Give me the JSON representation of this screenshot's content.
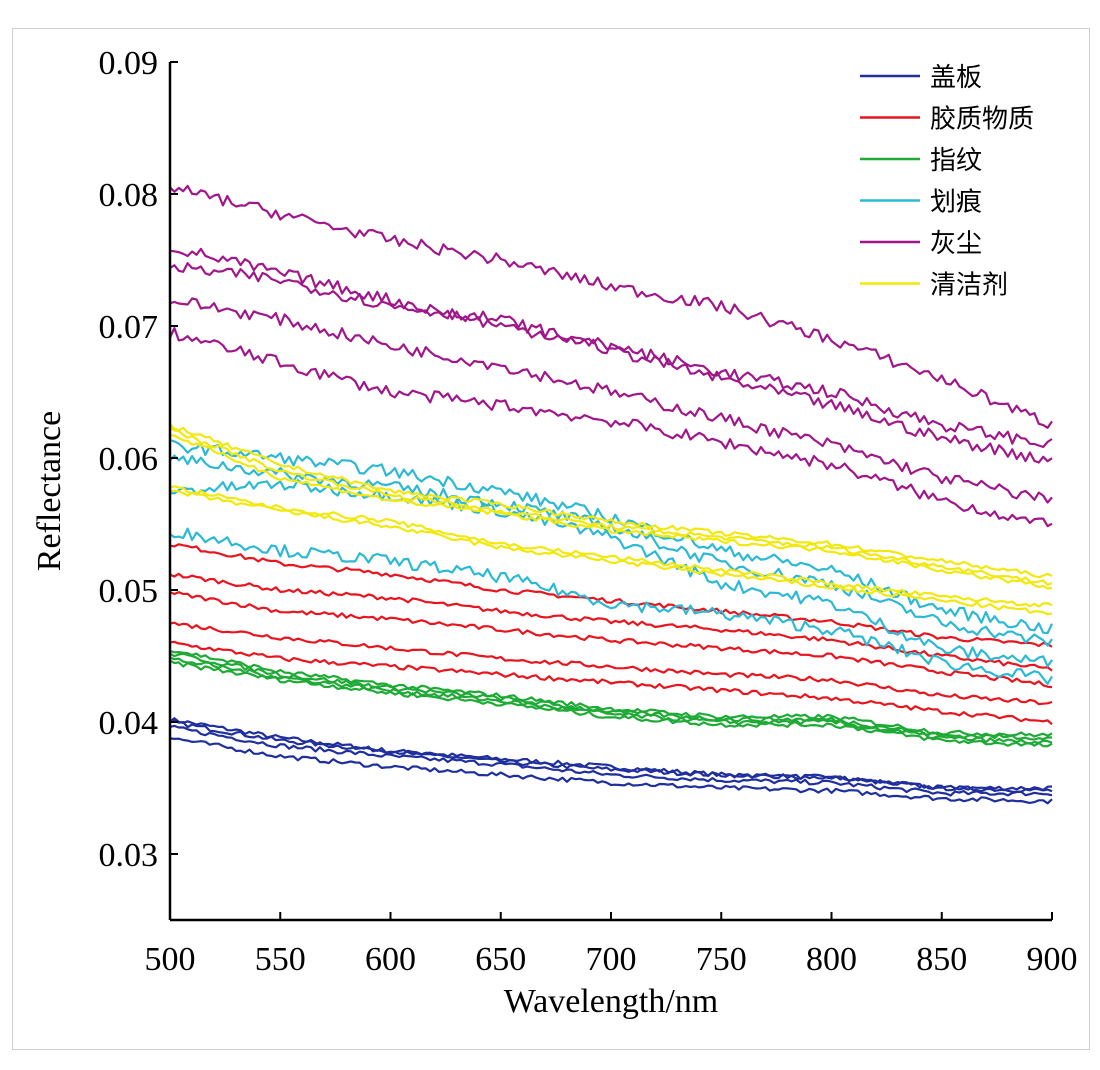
{
  "chart_data": {
    "type": "line",
    "xlabel": "Wavelength/nm",
    "ylabel": "Reflectance",
    "xlim": [
      500,
      900
    ],
    "ylim": [
      0.025,
      0.09
    ],
    "x_ticks": [
      500,
      550,
      600,
      650,
      700,
      750,
      800,
      850,
      900
    ],
    "y_ticks": [
      0.03,
      0.04,
      0.05,
      0.06,
      0.07,
      0.08,
      0.09
    ],
    "grid": false,
    "legend_position": "top-right",
    "x": [
      500,
      550,
      600,
      650,
      700,
      750,
      800,
      850,
      900
    ],
    "legend": [
      {
        "label": "盖板",
        "color": "#1f2f9e"
      },
      {
        "label": "胶质物质",
        "color": "#e8141e"
      },
      {
        "label": "指纹",
        "color": "#1faa36"
      },
      {
        "label": "划痕",
        "color": "#2bb9d3"
      },
      {
        "label": "灰尘",
        "color": "#a0178a"
      },
      {
        "label": "清洁剂",
        "color": "#f2e80c"
      }
    ],
    "series": [
      {
        "group": "盖板",
        "color": "#1f2f9e",
        "values": [
          0.0402,
          0.0388,
          0.0378,
          0.0372,
          0.0366,
          0.036,
          0.0358,
          0.035,
          0.035
        ]
      },
      {
        "group": "盖板",
        "color": "#1f2f9e",
        "values": [
          0.04,
          0.0386,
          0.0378,
          0.037,
          0.0364,
          0.036,
          0.0358,
          0.035,
          0.0348
        ]
      },
      {
        "group": "盖板",
        "color": "#1f2f9e",
        "values": [
          0.0396,
          0.0382,
          0.0374,
          0.0368,
          0.036,
          0.0356,
          0.0354,
          0.0346,
          0.0346
        ]
      },
      {
        "group": "盖板",
        "color": "#1f2f9e",
        "values": [
          0.0388,
          0.0374,
          0.0366,
          0.036,
          0.0354,
          0.035,
          0.0348,
          0.0342,
          0.034
        ]
      },
      {
        "group": "胶质物质",
        "color": "#e8141e",
        "values": [
          0.0535,
          0.052,
          0.0512,
          0.05,
          0.0492,
          0.0484,
          0.0476,
          0.0464,
          0.0458
        ]
      },
      {
        "group": "胶质物质",
        "color": "#e8141e",
        "values": [
          0.0512,
          0.05,
          0.0494,
          0.0484,
          0.0476,
          0.047,
          0.0462,
          0.045,
          0.044
        ]
      },
      {
        "group": "胶质物质",
        "color": "#e8141e",
        "values": [
          0.0498,
          0.0484,
          0.0478,
          0.047,
          0.0462,
          0.0456,
          0.045,
          0.0438,
          0.0428
        ]
      },
      {
        "group": "胶质物质",
        "color": "#e8141e",
        "values": [
          0.0475,
          0.0464,
          0.0456,
          0.0448,
          0.0442,
          0.0436,
          0.0432,
          0.042,
          0.0414
        ]
      },
      {
        "group": "胶质物质",
        "color": "#e8141e",
        "values": [
          0.046,
          0.0448,
          0.0442,
          0.0436,
          0.043,
          0.0424,
          0.0418,
          0.0408,
          0.04
        ]
      },
      {
        "group": "指纹",
        "color": "#1faa36",
        "values": [
          0.0455,
          0.0438,
          0.0428,
          0.042,
          0.041,
          0.0404,
          0.0404,
          0.0392,
          0.039
        ]
      },
      {
        "group": "指纹",
        "color": "#1faa36",
        "values": [
          0.0452,
          0.0436,
          0.0426,
          0.0418,
          0.0408,
          0.0402,
          0.0402,
          0.039,
          0.0388
        ]
      },
      {
        "group": "指纹",
        "color": "#1faa36",
        "values": [
          0.0448,
          0.0434,
          0.0424,
          0.0416,
          0.0406,
          0.04,
          0.04,
          0.0388,
          0.0384
        ]
      },
      {
        "group": "指纹",
        "color": "#1faa36",
        "values": [
          0.0445,
          0.0432,
          0.0422,
          0.0414,
          0.0404,
          0.0398,
          0.0398,
          0.0386,
          0.0382
        ]
      },
      {
        "group": "划痕",
        "color": "#2bb9d3",
        "values": [
          0.061,
          0.06,
          0.059,
          0.0575,
          0.0555,
          0.053,
          0.0515,
          0.0485,
          0.047
        ]
      },
      {
        "group": "划痕",
        "color": "#2bb9d3",
        "values": [
          0.06,
          0.0588,
          0.0578,
          0.0566,
          0.0548,
          0.052,
          0.0505,
          0.0475,
          0.046
        ]
      },
      {
        "group": "划痕",
        "color": "#2bb9d3",
        "values": [
          0.0575,
          0.058,
          0.0572,
          0.056,
          0.054,
          0.0505,
          0.049,
          0.0455,
          0.0445
        ]
      },
      {
        "group": "划痕",
        "color": "#2bb9d3",
        "values": [
          0.0545,
          0.053,
          0.0522,
          0.051,
          0.049,
          0.0482,
          0.047,
          0.0445,
          0.0432
        ]
      },
      {
        "group": "灰尘",
        "color": "#a0178a",
        "values": [
          0.0805,
          0.0785,
          0.0765,
          0.075,
          0.073,
          0.0715,
          0.069,
          0.066,
          0.0625
        ]
      },
      {
        "group": "灰尘",
        "color": "#a0178a",
        "values": [
          0.076,
          0.074,
          0.072,
          0.07,
          0.0685,
          0.0665,
          0.065,
          0.0625,
          0.061
        ]
      },
      {
        "group": "灰尘",
        "color": "#a0178a",
        "values": [
          0.0745,
          0.0735,
          0.0715,
          0.0705,
          0.0682,
          0.066,
          0.064,
          0.0615,
          0.0598
        ]
      },
      {
        "group": "灰尘",
        "color": "#a0178a",
        "values": [
          0.072,
          0.0705,
          0.0685,
          0.067,
          0.065,
          0.063,
          0.061,
          0.0585,
          0.0568
        ]
      },
      {
        "group": "灰尘",
        "color": "#a0178a",
        "values": [
          0.0695,
          0.0672,
          0.065,
          0.064,
          0.0628,
          0.0612,
          0.0595,
          0.0568,
          0.0548
        ]
      },
      {
        "group": "清洁剂",
        "color": "#f2e80c",
        "values": [
          0.0625,
          0.0595,
          0.0575,
          0.0565,
          0.0552,
          0.0543,
          0.0535,
          0.0522,
          0.051
        ]
      },
      {
        "group": "清洁剂",
        "color": "#f2e80c",
        "values": [
          0.0622,
          0.059,
          0.0572,
          0.056,
          0.0548,
          0.054,
          0.0532,
          0.0518,
          0.0505
        ]
      },
      {
        "group": "清洁剂",
        "color": "#f2e80c",
        "values": [
          0.0618,
          0.0585,
          0.0568,
          0.0558,
          0.0545,
          0.0537,
          0.053,
          0.0515,
          0.0502
        ]
      },
      {
        "group": "清洁剂",
        "color": "#f2e80c",
        "values": [
          0.0578,
          0.0562,
          0.0552,
          0.0535,
          0.0525,
          0.0515,
          0.0505,
          0.0495,
          0.0488
        ]
      },
      {
        "group": "清洁剂",
        "color": "#f2e80c",
        "values": [
          0.0575,
          0.056,
          0.0548,
          0.0532,
          0.0522,
          0.0512,
          0.0502,
          0.0492,
          0.0482
        ]
      }
    ]
  }
}
